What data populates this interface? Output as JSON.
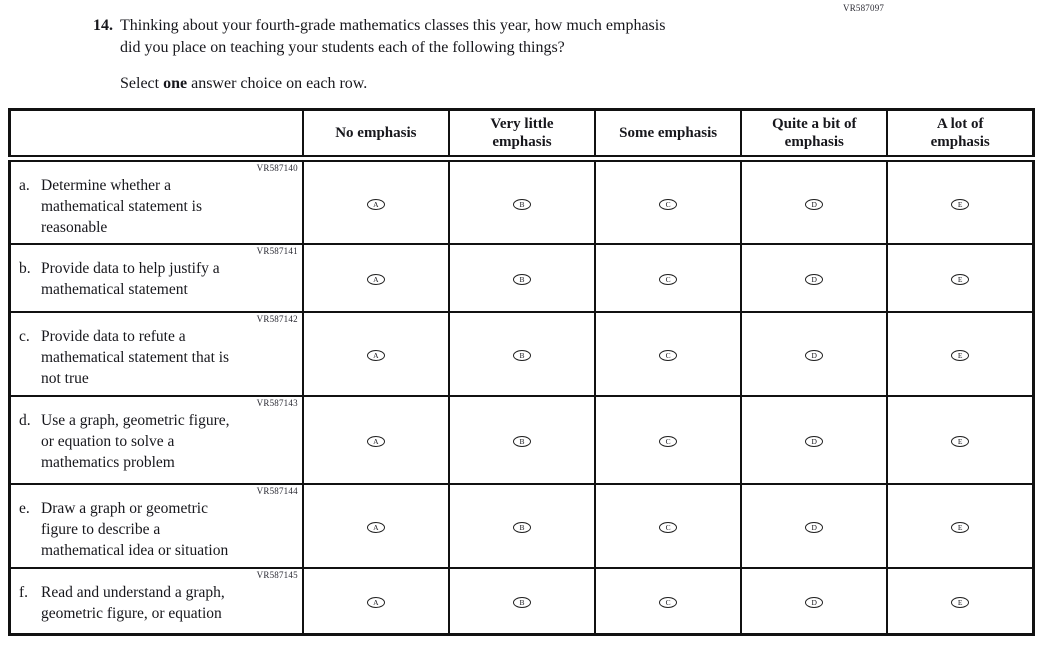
{
  "page": {
    "form_code": "VR587097"
  },
  "question": {
    "number": "14.",
    "lines": [
      "Thinking about your fourth-grade mathematics classes this year, how much emphasis",
      "did you place on teaching your students each of the following things?"
    ],
    "prompt": {
      "pre": "Select ",
      "bold": "one",
      "post": " answer choice on each row."
    }
  },
  "table": {
    "columns": [
      {
        "lines": [
          "No emphasis"
        ]
      },
      {
        "lines": [
          "Very little",
          "emphasis"
        ]
      },
      {
        "lines": [
          "Some emphasis"
        ]
      },
      {
        "lines": [
          "Quite a bit of",
          "emphasis"
        ]
      },
      {
        "lines": [
          "A lot of",
          "emphasis"
        ]
      }
    ],
    "choices": [
      "A",
      "B",
      "C",
      "D",
      "E"
    ],
    "rows": [
      {
        "code": "VR587140",
        "prefix": "a.",
        "lines": [
          "Determine whether a",
          "mathematical statement is",
          "reasonable"
        ]
      },
      {
        "code": "VR587141",
        "prefix": "b.",
        "lines": [
          "Provide data to help justify a",
          "mathematical statement"
        ]
      },
      {
        "code": "VR587142",
        "prefix": "c.",
        "lines": [
          "Provide data to refute a",
          "mathematical statement that is",
          "not true"
        ]
      },
      {
        "code": "VR587143",
        "prefix": "d.",
        "lines": [
          "Use a graph, geometric figure,",
          "or equation to solve a",
          "mathematics problem"
        ]
      },
      {
        "code": "VR587144",
        "prefix": "e.",
        "lines": [
          "Draw a graph or geometric",
          "figure to describe a",
          "mathematical idea or situation"
        ]
      },
      {
        "code": "VR587145",
        "prefix": "f.",
        "lines": [
          "Read and understand a graph,",
          "geometric figure, or equation"
        ]
      }
    ]
  }
}
